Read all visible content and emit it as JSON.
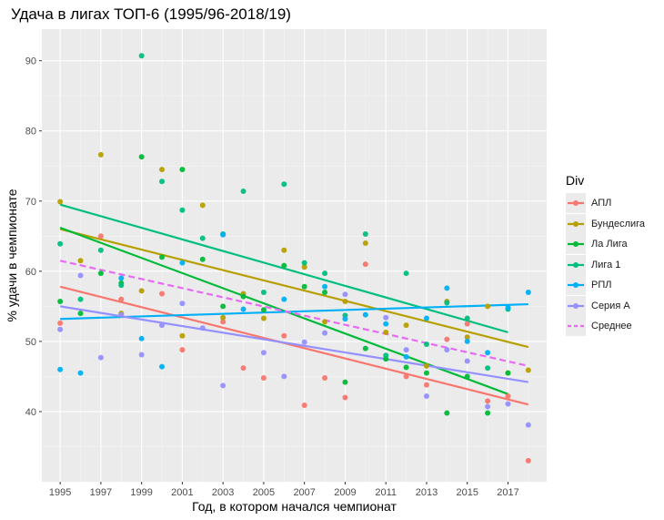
{
  "chart_data": {
    "type": "scatter",
    "title": "Удача в лигах ТОП-6 (1995/96-2018/19)",
    "xlabel": "Год, в котором начался чемпионат",
    "ylabel": "% удачи в чемпионате",
    "xlim": [
      1994.1,
      2018.9
    ],
    "ylim": [
      30,
      94.5
    ],
    "xticks": [
      1995,
      1997,
      1999,
      2001,
      2003,
      2005,
      2007,
      2009,
      2011,
      2013,
      2015,
      2017
    ],
    "yticks": [
      40,
      50,
      60,
      70,
      80,
      90
    ],
    "grid": true,
    "legend_title": "Div",
    "legend_position": "right",
    "series": [
      {
        "name": "АПЛ",
        "color": "#F8766D",
        "dashed": false,
        "points": [
          [
            1995,
            52.6
          ],
          [
            1997,
            65.0
          ],
          [
            1998,
            56.0
          ],
          [
            2000,
            56.8
          ],
          [
            2001,
            48.8
          ],
          [
            2003,
            52.8
          ],
          [
            2004,
            46.2
          ],
          [
            2005,
            44.8
          ],
          [
            2006,
            50.8
          ],
          [
            2007,
            40.9
          ],
          [
            2008,
            44.8
          ],
          [
            2009,
            42.0
          ],
          [
            2010,
            61.0
          ],
          [
            2012,
            45.0
          ],
          [
            2013,
            43.8
          ],
          [
            2014,
            50.3
          ],
          [
            2015,
            52.5
          ],
          [
            2016,
            41.5
          ],
          [
            2017,
            42.2
          ],
          [
            2018,
            33.0
          ]
        ],
        "trend": [
          [
            1995,
            57.8
          ],
          [
            2018,
            41.0
          ]
        ]
      },
      {
        "name": "Бундеслига",
        "color": "#B79F00",
        "dashed": false,
        "points": [
          [
            1995,
            69.9
          ],
          [
            1996,
            61.5
          ],
          [
            1997,
            76.6
          ],
          [
            1998,
            54.0
          ],
          [
            1999,
            57.2
          ],
          [
            2000,
            74.5
          ],
          [
            2001,
            50.8
          ],
          [
            2002,
            69.4
          ],
          [
            2003,
            53.4
          ],
          [
            2004,
            56.8
          ],
          [
            2005,
            53.3
          ],
          [
            2006,
            63.0
          ],
          [
            2007,
            60.6
          ],
          [
            2008,
            52.8
          ],
          [
            2009,
            55.7
          ],
          [
            2010,
            64.0
          ],
          [
            2011,
            51.3
          ],
          [
            2012,
            52.3
          ],
          [
            2013,
            46.5
          ],
          [
            2014,
            55.7
          ],
          [
            2015,
            50.6
          ],
          [
            2016,
            55.0
          ],
          [
            2017,
            45.5
          ],
          [
            2018,
            45.9
          ]
        ],
        "trend": [
          [
            1995,
            66.0
          ],
          [
            2018,
            49.2
          ]
        ]
      },
      {
        "name": "Ла Лига",
        "color": "#00BA38",
        "dashed": false,
        "points": [
          [
            1995,
            55.7
          ],
          [
            1996,
            54.0
          ],
          [
            1997,
            59.7
          ],
          [
            1998,
            58.3
          ],
          [
            1999,
            76.3
          ],
          [
            2000,
            62.0
          ],
          [
            2001,
            74.5
          ],
          [
            2002,
            61.7
          ],
          [
            2003,
            55.0
          ],
          [
            2004,
            56.4
          ],
          [
            2005,
            54.5
          ],
          [
            2006,
            60.8
          ],
          [
            2007,
            57.8
          ],
          [
            2008,
            57.0
          ],
          [
            2009,
            44.2
          ],
          [
            2010,
            49.0
          ],
          [
            2011,
            47.5
          ],
          [
            2012,
            46.3
          ],
          [
            2013,
            45.5
          ],
          [
            2014,
            39.8
          ],
          [
            2015,
            45.0
          ],
          [
            2016,
            39.8
          ],
          [
            2017,
            45.5
          ]
        ],
        "trend": [
          [
            1995,
            66.2
          ],
          [
            2017,
            42.5
          ]
        ]
      },
      {
        "name": "Лига 1",
        "color": "#00BF7D",
        "dashed": false,
        "points": [
          [
            1995,
            63.9
          ],
          [
            1996,
            56.0
          ],
          [
            1997,
            63.0
          ],
          [
            1998,
            58.0
          ],
          [
            1999,
            90.7
          ],
          [
            2000,
            72.8
          ],
          [
            2001,
            68.7
          ],
          [
            2002,
            64.7
          ],
          [
            2003,
            65.3
          ],
          [
            2004,
            71.4
          ],
          [
            2005,
            57.0
          ],
          [
            2006,
            72.4
          ],
          [
            2007,
            61.2
          ],
          [
            2008,
            59.7
          ],
          [
            2009,
            53.7
          ],
          [
            2010,
            65.3
          ],
          [
            2011,
            48.0
          ],
          [
            2012,
            59.7
          ],
          [
            2013,
            49.6
          ],
          [
            2014,
            55.5
          ],
          [
            2015,
            53.3
          ],
          [
            2016,
            46.2
          ],
          [
            2017,
            54.6
          ]
        ],
        "trend": [
          [
            1995,
            69.5
          ],
          [
            2017,
            51.3
          ]
        ]
      },
      {
        "name": "РПЛ",
        "color": "#00B0F6",
        "dashed": false,
        "points": [
          [
            1995,
            46.0
          ],
          [
            1996,
            45.5
          ],
          [
            1998,
            59.0
          ],
          [
            1999,
            50.4
          ],
          [
            2000,
            46.4
          ],
          [
            2001,
            61.2
          ],
          [
            2003,
            65.2
          ],
          [
            2004,
            54.6
          ],
          [
            2006,
            56.0
          ],
          [
            2008,
            57.8
          ],
          [
            2009,
            53.2
          ],
          [
            2010,
            53.8
          ],
          [
            2011,
            52.5
          ],
          [
            2012,
            47.8
          ],
          [
            2013,
            53.3
          ],
          [
            2014,
            57.6
          ],
          [
            2015,
            50.0
          ],
          [
            2016,
            48.4
          ],
          [
            2017,
            54.8
          ],
          [
            2018,
            57.0
          ]
        ],
        "trend": [
          [
            1995,
            53.2
          ],
          [
            2018,
            55.3
          ]
        ]
      },
      {
        "name": "Серия А",
        "color": "#9590FF",
        "dashed": false,
        "points": [
          [
            1995,
            51.7
          ],
          [
            1996,
            59.4
          ],
          [
            1997,
            47.7
          ],
          [
            1998,
            53.8
          ],
          [
            1999,
            48.1
          ],
          [
            2000,
            52.3
          ],
          [
            2001,
            55.4
          ],
          [
            2002,
            51.9
          ],
          [
            2003,
            43.7
          ],
          [
            2005,
            48.4
          ],
          [
            2006,
            45.0
          ],
          [
            2007,
            49.9
          ],
          [
            2008,
            51.2
          ],
          [
            2009,
            56.7
          ],
          [
            2011,
            53.4
          ],
          [
            2012,
            48.8
          ],
          [
            2013,
            42.2
          ],
          [
            2014,
            48.8
          ],
          [
            2015,
            47.2
          ],
          [
            2016,
            40.7
          ],
          [
            2017,
            41.1
          ],
          [
            2018,
            38.1
          ]
        ],
        "trend": [
          [
            1995,
            55.0
          ],
          [
            2018,
            44.2
          ]
        ]
      },
      {
        "name": "Среднее",
        "color": "#E76BF3",
        "dashed": true,
        "points": [],
        "trend": [
          [
            1995,
            61.5
          ],
          [
            2018,
            46.5
          ]
        ]
      }
    ]
  }
}
